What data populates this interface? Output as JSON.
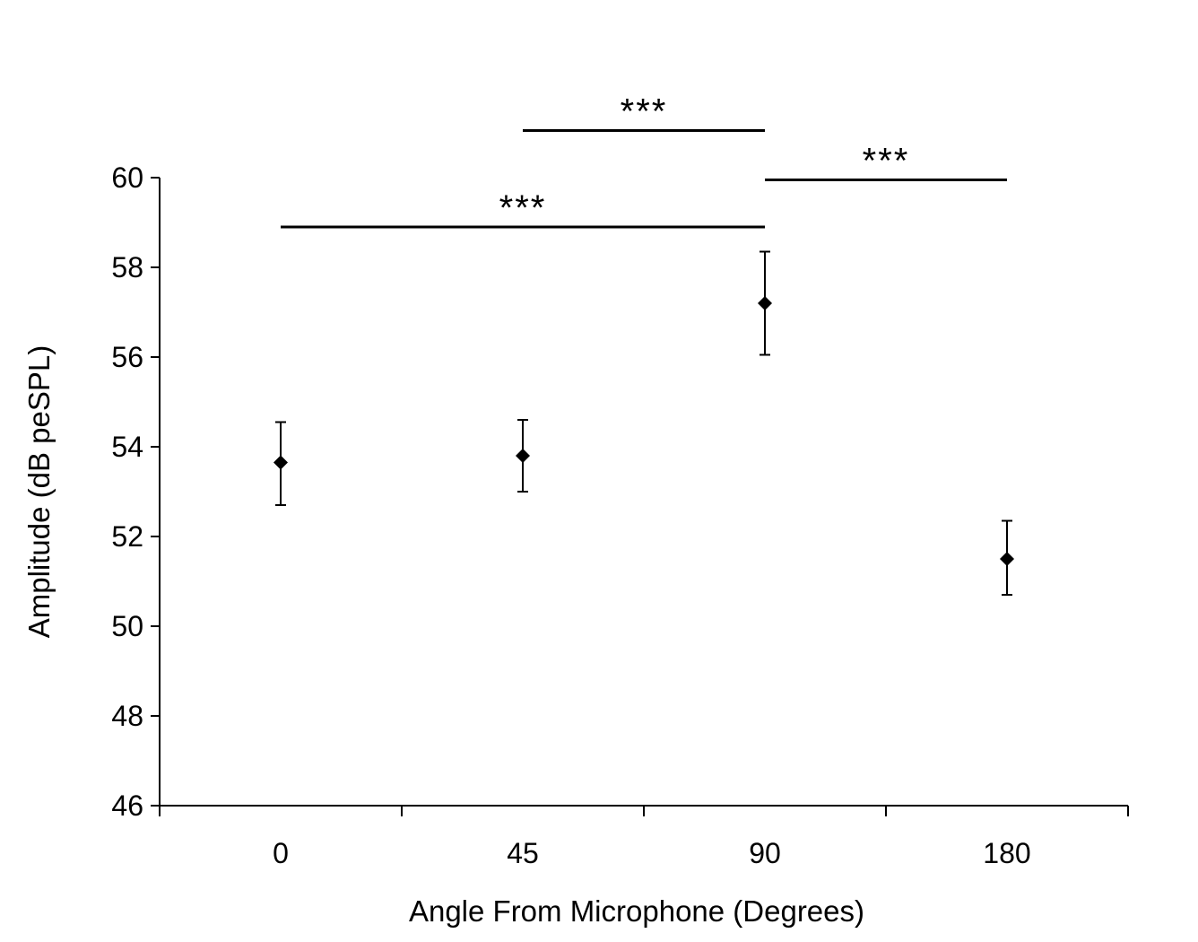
{
  "chart_data": {
    "type": "scatter",
    "title": "",
    "xlabel": "Angle From Microphone (Degrees)",
    "ylabel": "Amplitude (dB peSPL)",
    "categories": [
      "0",
      "45",
      "90",
      "180"
    ],
    "series": [
      {
        "values": [
          53.65,
          53.8,
          57.2,
          51.5
        ],
        "error_low": [
          52.7,
          53.0,
          56.05,
          50.7
        ],
        "error_high": [
          54.55,
          54.6,
          58.35,
          52.35
        ]
      }
    ],
    "ylim": [
      46,
      60
    ],
    "yticks": [
      "46",
      "48",
      "50",
      "52",
      "54",
      "56",
      "58",
      "60"
    ],
    "grid": false,
    "legend": "none",
    "marker": "diamond",
    "significance": [
      {
        "from": "0",
        "to": "90",
        "y": 58.9,
        "label": "***"
      },
      {
        "from": "45",
        "to": "90",
        "y": 61.05,
        "label": "***"
      },
      {
        "from": "90",
        "to": "180",
        "y": 59.95,
        "label": "***"
      }
    ]
  }
}
